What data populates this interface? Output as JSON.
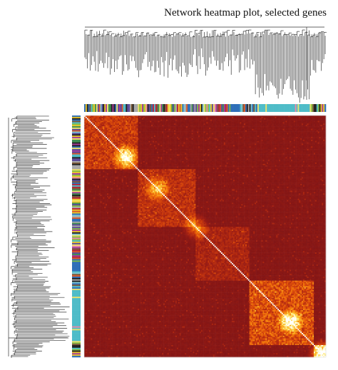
{
  "chart_data": {
    "type": "heatmap",
    "title": "Network heatmap plot, selected genes",
    "n_genes": 180,
    "colorscale": [
      "#7f1516",
      "#9a1c14",
      "#c2330e",
      "#e3550a",
      "#f7890f",
      "#fbc02d",
      "#fff59d",
      "#ffffff"
    ],
    "module_palette": [
      "#4fbcc8",
      "#e8c52b",
      "#a33c9c",
      "#2f6fb8",
      "#b7243c",
      "#7d5b3a",
      "#84bd45",
      "#d65a2c",
      "#222222",
      "#7ec8d6",
      "#a9a9a9",
      "#e88aa8",
      "#5c4b99",
      "#3f8f51",
      "#f0e26a"
    ],
    "module_blocks": [
      {
        "from": 0.0,
        "to": 0.22,
        "intensity": 0.38
      },
      {
        "from": 0.22,
        "to": 0.46,
        "intensity": 0.32
      },
      {
        "from": 0.46,
        "to": 0.68,
        "intensity": 0.22
      },
      {
        "from": 0.68,
        "to": 0.95,
        "intensity": 0.5
      },
      {
        "from": 0.95,
        "to": 1.0,
        "intensity": 0.55
      }
    ],
    "hotspots": [
      {
        "pos": 0.17,
        "intensity": 0.95
      },
      {
        "pos": 0.3,
        "intensity": 0.7
      },
      {
        "pos": 0.46,
        "intensity": 0.6
      },
      {
        "pos": 0.85,
        "intensity": 0.95
      },
      {
        "pos": 0.98,
        "intensity": 0.9
      }
    ]
  }
}
